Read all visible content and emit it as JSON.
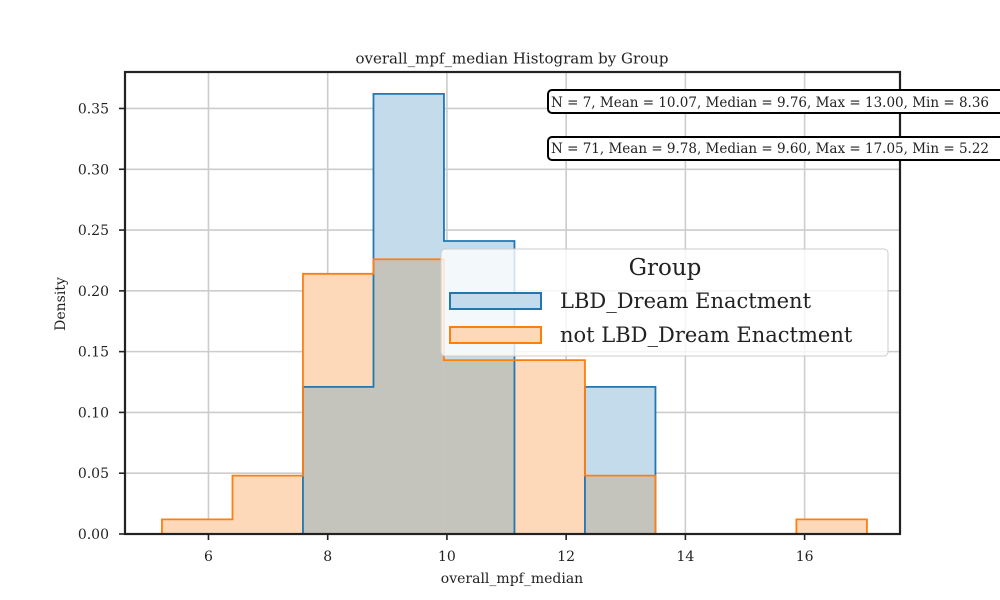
{
  "chart_data": {
    "type": "histogram",
    "title": "overall_mpf_median Histogram by Group",
    "xlabel": "overall_mpf_median",
    "ylabel": "Density",
    "xlim": [
      4.6,
      17.6
    ],
    "ylim": [
      0,
      0.38
    ],
    "xticks": [
      6,
      8,
      10,
      12,
      14,
      16
    ],
    "yticks": [
      0.0,
      0.05,
      0.1,
      0.15,
      0.2,
      0.25,
      0.3,
      0.35
    ],
    "ytick_labels": [
      "0.00",
      "0.05",
      "0.10",
      "0.15",
      "0.20",
      "0.25",
      "0.30",
      "0.35"
    ],
    "grid": true,
    "bin_edges": [
      5.22,
      6.403,
      7.585,
      8.768,
      9.95,
      11.133,
      12.315,
      13.498,
      14.68,
      15.862,
      17.045
    ],
    "series": [
      {
        "name": "LBD_Dream Enactment",
        "color": "#1f77b4",
        "fill": "#c4dbec",
        "values": [
          0,
          0,
          0.121,
          0.362,
          0.241,
          0,
          0.121,
          0,
          0,
          0
        ]
      },
      {
        "name": "not LBD_Dream Enactment",
        "color": "#ff7f0e",
        "fill": "#fed9b9",
        "values": [
          0.012,
          0.048,
          0.214,
          0.226,
          0.143,
          0.143,
          0.048,
          0,
          0,
          0.012
        ]
      }
    ],
    "overlap_fill": "#c4c3bc",
    "stats": [
      "N = 7, Mean = 10.07, Median = 9.76, Max = 13.00, Min = 8.36",
      "N = 71, Mean = 9.78, Median = 9.60, Max = 17.05, Min = 5.22"
    ],
    "legend": {
      "title": "Group",
      "placement": "center-right",
      "entries": [
        "LBD_Dream Enactment",
        "not LBD_Dream Enactment"
      ]
    }
  }
}
